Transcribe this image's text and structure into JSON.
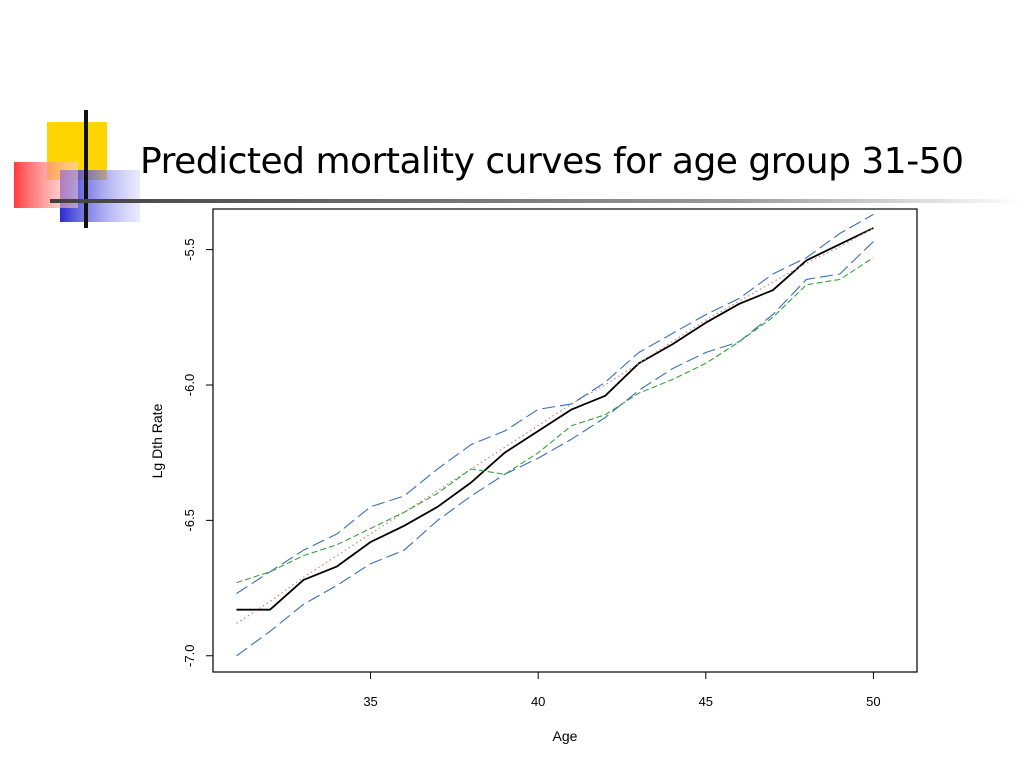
{
  "slide": {
    "title": "Predicted mortality curves for age group 31-50"
  },
  "chart_data": {
    "type": "line",
    "title": "",
    "xlabel": "Age",
    "ylabel": "Lg Dth Rate",
    "xlim": [
      30.3,
      51.3
    ],
    "ylim": [
      -7.06,
      -5.35
    ],
    "xticks": [
      35,
      40,
      45,
      50
    ],
    "xtick_labels": [
      "35",
      "40",
      "45",
      "50"
    ],
    "yticks": [
      -5.5,
      -6.0,
      -6.5,
      -7.0
    ],
    "ytick_labels": [
      "-5.5",
      "-6.0",
      "-6.5",
      "-7.0"
    ],
    "grid": false,
    "legend": "none",
    "x": [
      31,
      32,
      33,
      34,
      35,
      36,
      37,
      38,
      39,
      40,
      41,
      42,
      43,
      44,
      45,
      46,
      47,
      48,
      49,
      50
    ],
    "series": [
      {
        "style": "solid",
        "color": "#000000",
        "values": [
          -6.83,
          -6.83,
          -6.72,
          -6.67,
          -6.58,
          -6.52,
          -6.45,
          -6.36,
          -6.25,
          -6.17,
          -6.09,
          -6.04,
          -5.92,
          -5.85,
          -5.77,
          -5.7,
          -5.65,
          -5.54,
          -5.48,
          -5.42
        ]
      },
      {
        "style": "dotted",
        "color": "#d08080",
        "values": [
          -6.88,
          -6.8,
          -6.71,
          -6.63,
          -6.55,
          -6.47,
          -6.39,
          -6.31,
          -6.23,
          -6.15,
          -6.07,
          -6.0,
          -5.92,
          -5.84,
          -5.76,
          -5.69,
          -5.62,
          -5.55,
          -5.49,
          -5.42
        ]
      },
      {
        "style": "long-dash",
        "color": "#3a6fb5",
        "values": [
          -6.77,
          -6.69,
          -6.61,
          -6.55,
          -6.45,
          -6.41,
          -6.31,
          -6.22,
          -6.17,
          -6.09,
          -6.07,
          -5.99,
          -5.88,
          -5.81,
          -5.74,
          -5.68,
          -5.59,
          -5.53,
          -5.44,
          -5.37
        ]
      },
      {
        "style": "long-dash",
        "color": "#3a6fb5",
        "values": [
          -7.0,
          -6.91,
          -6.81,
          -6.74,
          -6.66,
          -6.61,
          -6.5,
          -6.41,
          -6.33,
          -6.27,
          -6.2,
          -6.12,
          -6.02,
          -5.94,
          -5.88,
          -5.84,
          -5.74,
          -5.61,
          -5.59,
          -5.47
        ]
      },
      {
        "style": "short-dash",
        "color": "#3aa03a",
        "values": [
          -6.73,
          -6.69,
          -6.63,
          -6.59,
          -6.53,
          -6.47,
          -6.4,
          -6.31,
          -6.33,
          -6.25,
          -6.15,
          -6.11,
          -6.03,
          -5.98,
          -5.92,
          -5.84,
          -5.75,
          -5.63,
          -5.61,
          -5.53
        ]
      }
    ]
  }
}
